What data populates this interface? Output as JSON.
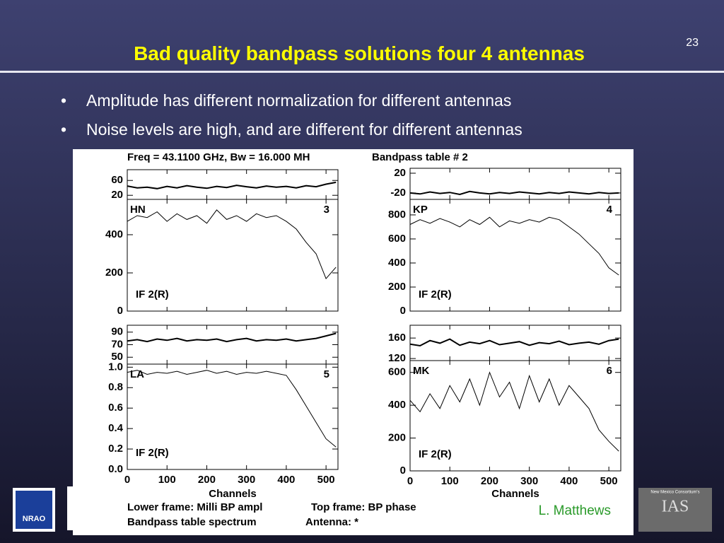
{
  "slide": {
    "page_number": "23",
    "title": "Bad quality bandpass solutions four 4 antennas",
    "bullets": [
      "Amplitude has different normalization for different antennas",
      "Noise levels are high, and are different for different antennas"
    ],
    "credit": "L. Matthews",
    "logos": {
      "left": "NRAO",
      "right_top": "New Mexico Consortium's",
      "right": "IAS"
    }
  },
  "figure": {
    "header": [
      "Freq = 43.1100 GHz, Bw = 16.000 MH",
      "Bandpass table # 2"
    ],
    "footer": [
      "Lower frame: Milli BP ampl",
      "Top frame: BP phase",
      "Bandpass table spectrum",
      "Antenna: *"
    ],
    "xlabel": "Channels",
    "xlim": [
      0,
      530
    ],
    "xticks": [
      0,
      100,
      200,
      300,
      400,
      500
    ],
    "x": [
      0,
      25,
      50,
      75,
      100,
      125,
      150,
      175,
      200,
      225,
      250,
      275,
      300,
      325,
      350,
      375,
      400,
      425,
      450,
      475,
      500,
      525
    ],
    "panels": [
      {
        "antenna": "HN",
        "number": "3",
        "if_label": "IF 2(R)",
        "top": {
          "ylim": [
            9,
            89
          ],
          "yticks": [
            60,
            20
          ],
          "values": [
            45,
            40,
            42,
            38,
            44,
            40,
            46,
            42,
            39,
            44,
            41,
            47,
            43,
            40,
            45,
            42,
            44,
            40,
            46,
            43,
            50,
            55
          ]
        },
        "bottom": {
          "ylim": [
            0,
            585
          ],
          "yticks": [
            400,
            200,
            0
          ],
          "values": [
            470,
            500,
            490,
            520,
            470,
            510,
            480,
            500,
            460,
            530,
            480,
            500,
            470,
            510,
            490,
            500,
            470,
            430,
            360,
            300,
            170,
            230
          ]
        }
      },
      {
        "antenna": "KP",
        "number": "4",
        "if_label": "IF 2(R)",
        "top": {
          "ylim": [
            -33,
            30
          ],
          "yticks": [
            20,
            -20
          ],
          "values": [
            -20,
            -22,
            -18,
            -21,
            -19,
            -23,
            -17,
            -20,
            -22,
            -19,
            -21,
            -18,
            -20,
            -22,
            -19,
            -21,
            -18,
            -20,
            -22,
            -19,
            -21,
            -20
          ]
        },
        "bottom": {
          "ylim": [
            0,
            929
          ],
          "yticks": [
            800,
            600,
            400,
            200,
            0
          ],
          "values": [
            720,
            760,
            730,
            770,
            740,
            700,
            760,
            720,
            780,
            700,
            750,
            730,
            760,
            740,
            780,
            760,
            700,
            640,
            560,
            480,
            360,
            300
          ]
        }
      },
      {
        "antenna": "LA",
        "number": "5",
        "if_label": "IF 2(R)",
        "top": {
          "ylim": [
            39,
            101
          ],
          "yticks": [
            90,
            70,
            50
          ],
          "values": [
            76,
            78,
            75,
            79,
            77,
            80,
            76,
            78,
            77,
            79,
            75,
            78,
            80,
            76,
            78,
            77,
            79,
            76,
            78,
            80,
            84,
            88
          ]
        },
        "bottom": {
          "ylim": [
            0,
            1.03
          ],
          "yticks": [
            {
              "value": 1,
              "label": "1.0"
            },
            {
              "value": 0.8,
              "label": "0.8"
            },
            {
              "value": 0.6,
              "label": "0.6"
            },
            {
              "value": 0.4,
              "label": "0.4"
            },
            {
              "value": 0.2,
              "label": "0.2"
            },
            {
              "value": 0,
              "label": "0.0"
            }
          ],
          "values": [
            0.95,
            0.97,
            0.93,
            0.95,
            0.94,
            0.96,
            0.93,
            0.95,
            0.97,
            0.94,
            0.96,
            0.93,
            0.95,
            0.94,
            0.96,
            0.94,
            0.92,
            0.78,
            0.62,
            0.46,
            0.3,
            0.22
          ]
        }
      },
      {
        "antenna": "MK",
        "number": "6",
        "if_label": "IF 2(R)",
        "top": {
          "ylim": [
            116,
            185
          ],
          "yticks": [
            160,
            120
          ],
          "values": [
            148,
            145,
            155,
            150,
            158,
            146,
            152,
            149,
            155,
            147,
            150,
            153,
            146,
            151,
            149,
            154,
            147,
            150,
            152,
            148,
            155,
            158
          ]
        },
        "bottom": {
          "ylim": [
            0,
            672
          ],
          "yticks": [
            600,
            400,
            200,
            0
          ],
          "values": [
            430,
            360,
            470,
            380,
            520,
            420,
            560,
            400,
            600,
            450,
            540,
            380,
            580,
            420,
            560,
            400,
            520,
            450,
            380,
            250,
            180,
            120
          ]
        }
      }
    ]
  }
}
